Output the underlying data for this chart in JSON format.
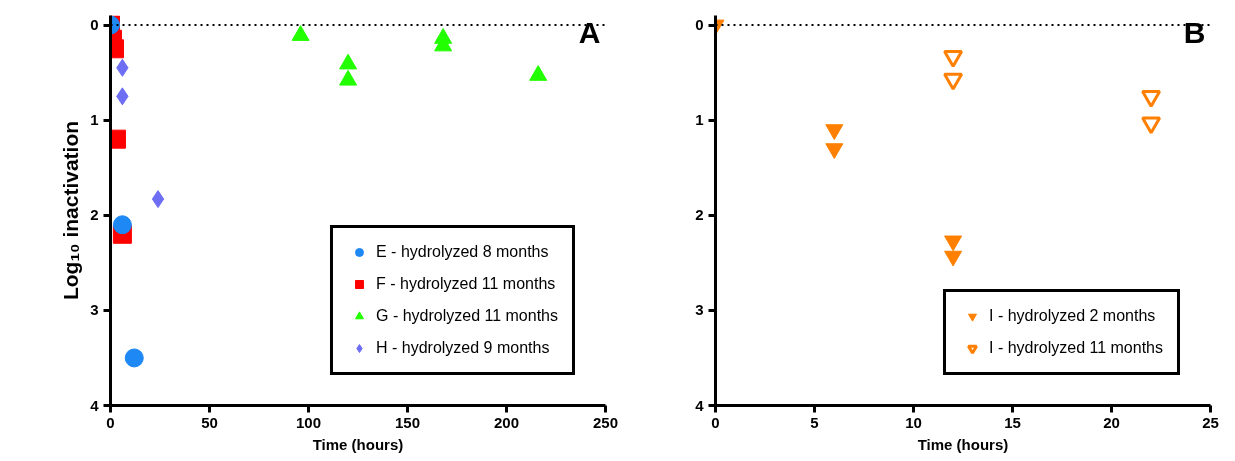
{
  "chart_data": [
    {
      "type": "scatter",
      "xlabel": "Time (hours)",
      "ylabel": "Log₁₀ inactivation",
      "annotations": [
        "A"
      ],
      "xlim": [
        0,
        250
      ],
      "xticks": [
        0,
        50,
        100,
        150,
        200,
        250
      ],
      "ylim": [
        4,
        -0.1
      ],
      "yticks": [
        0,
        1,
        2,
        3,
        4
      ],
      "grid": false,
      "legend": "bottom right",
      "ref_lines": [
        {
          "axis": "y",
          "value": 0,
          "line_style": "dotted",
          "color": "#000000"
        }
      ],
      "series": [
        {
          "name": "E - hydrolyzed 8 months",
          "color": "#1e88f5",
          "marker": "circle",
          "x": [
            0,
            6,
            12
          ],
          "values": [
            0,
            2.1,
            3.5
          ]
        },
        {
          "name": "F - hydrolyzed 11 months",
          "color": "#ff0000",
          "marker": "square",
          "x": [
            0,
            1,
            2,
            3,
            6
          ],
          "values": [
            0,
            0.15,
            0.25,
            1.2,
            2.2
          ]
        },
        {
          "name": "G - hydrolyzed 11 months",
          "color": "#22ff00",
          "marker": "triangle",
          "x": [
            96,
            120,
            120,
            168,
            168,
            216
          ],
          "values": [
            0.11,
            0.41,
            0.58,
            0.14,
            0.22,
            0.53
          ]
        },
        {
          "name": "H - hydrolyzed 9 months",
          "color": "#6e6ef5",
          "marker": "diamond",
          "x": [
            6,
            6,
            24
          ],
          "values": [
            0.45,
            0.75,
            1.83
          ]
        }
      ]
    },
    {
      "type": "scatter",
      "xlabel": "Time (hours)",
      "annotations": [
        "B"
      ],
      "xlim": [
        0,
        25
      ],
      "xticks": [
        0,
        5,
        10,
        15,
        20,
        25
      ],
      "ylim": [
        4,
        -0.1
      ],
      "yticks": [
        0,
        1,
        2,
        3,
        4
      ],
      "grid": false,
      "legend": "bottom right",
      "ref_lines": [
        {
          "axis": "y",
          "value": 0,
          "line_style": "dotted",
          "color": "#000000"
        }
      ],
      "series": [
        {
          "name": "I - hydrolyzed 2 months",
          "color": "#ff8000",
          "x": [
            0,
            6,
            6,
            12,
            12
          ],
          "values": [
            0,
            1.1,
            1.3,
            2.27,
            2.43
          ]
        },
        {
          "name": "I - hydrolyzed 11 months",
          "color": "#ff8000",
          "x": [
            12,
            12,
            22,
            22
          ],
          "values": [
            0.33,
            0.57,
            0.75,
            1.03
          ]
        }
      ]
    }
  ]
}
